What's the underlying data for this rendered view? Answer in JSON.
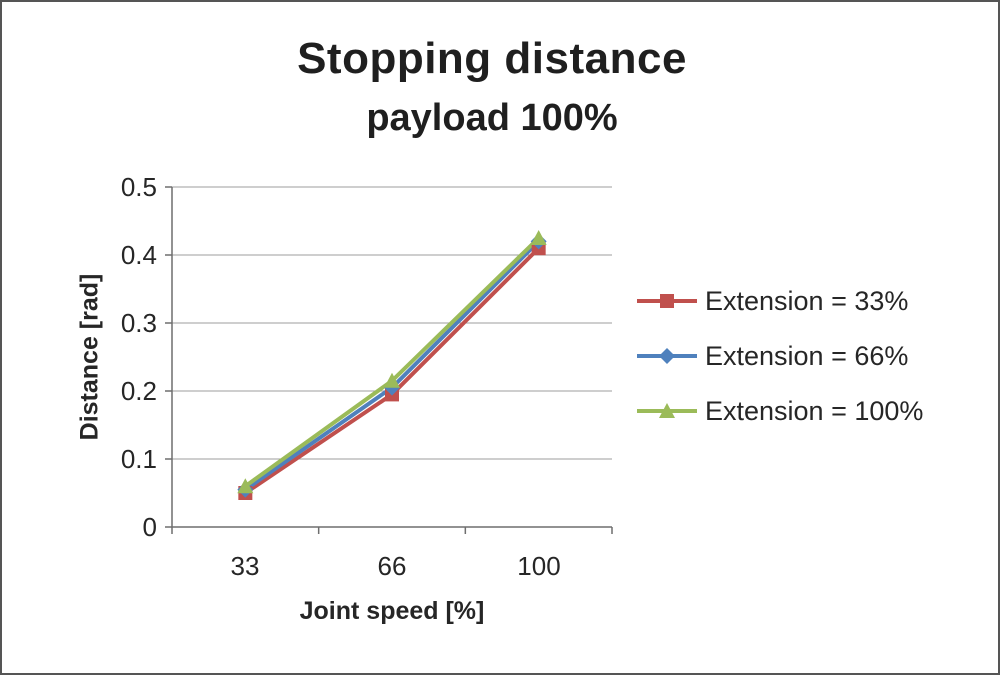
{
  "chart_data": {
    "type": "line",
    "title": "Stopping distance",
    "subtitle": "payload 100%",
    "xlabel": "Joint speed [%]",
    "ylabel": "Distance [rad]",
    "categories": [
      "33",
      "66",
      "100"
    ],
    "series": [
      {
        "name": "Extension = 33%",
        "color": "#C0504D",
        "marker": "square",
        "values": [
          0.05,
          0.195,
          0.41
        ]
      },
      {
        "name": "Extension = 66%",
        "color": "#4F81BD",
        "marker": "diamond",
        "values": [
          0.055,
          0.205,
          0.42
        ]
      },
      {
        "name": "Extension = 100%",
        "color": "#9BBB59",
        "marker": "triangle",
        "values": [
          0.06,
          0.215,
          0.425
        ]
      }
    ],
    "ylim": [
      0,
      0.5
    ],
    "y_tick_labels": [
      "0.5",
      "0.4",
      "0.3",
      "0.2",
      "0.1",
      "0"
    ],
    "grid": true,
    "legend_position": "right",
    "colors": {
      "gridline": "#9d9d9d",
      "axis": "#6e6e6e",
      "text": "#262626"
    }
  }
}
